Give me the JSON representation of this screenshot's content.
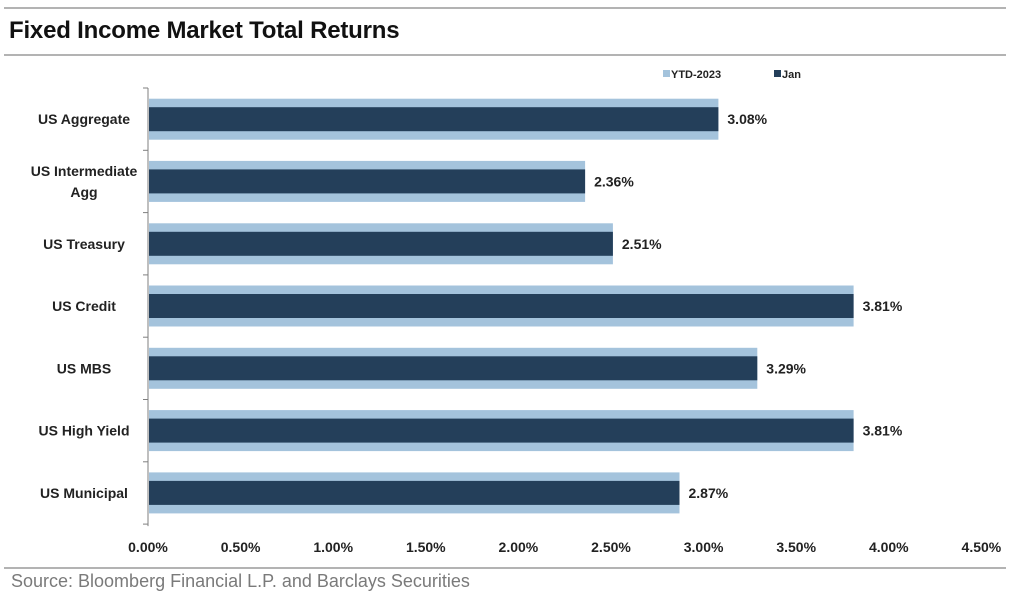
{
  "title": "Fixed Income Market Total Returns",
  "source": "Source: Bloomberg Financial L.P. and Barclays Securities",
  "chart_data": {
    "type": "bar",
    "orientation": "horizontal",
    "title": "Fixed Income Market Total Returns",
    "xlabel": "",
    "ylabel": "",
    "categories": [
      [
        "US Aggregate"
      ],
      [
        "US Intermediate",
        "Agg"
      ],
      [
        "US Treasury"
      ],
      [
        "US Credit"
      ],
      [
        "US MBS"
      ],
      [
        "US High Yield"
      ],
      [
        "US Municipal"
      ]
    ],
    "series": [
      {
        "name": "YTD-2023",
        "color": "#a4c3dc",
        "values": [
          3.08,
          2.36,
          2.51,
          3.81,
          3.29,
          3.81,
          2.87
        ]
      },
      {
        "name": "Jan",
        "color": "#243f5a",
        "values": [
          3.08,
          2.36,
          2.51,
          3.81,
          3.29,
          3.81,
          2.87
        ],
        "data_labels": [
          "3.08%",
          "2.36%",
          "2.51%",
          "3.81%",
          "3.29%",
          "3.81%",
          "2.87%"
        ]
      }
    ],
    "xlim": [
      0,
      4.5
    ],
    "xticks": [
      0,
      0.5,
      1.0,
      1.5,
      2.0,
      2.5,
      3.0,
      3.5,
      4.0,
      4.5
    ],
    "xtick_labels": [
      "0.00%",
      "0.50%",
      "1.00%",
      "1.50%",
      "2.00%",
      "2.50%",
      "3.00%",
      "3.50%",
      "4.00%",
      "4.50%"
    ],
    "grid": false,
    "legend_position": "top-right"
  }
}
